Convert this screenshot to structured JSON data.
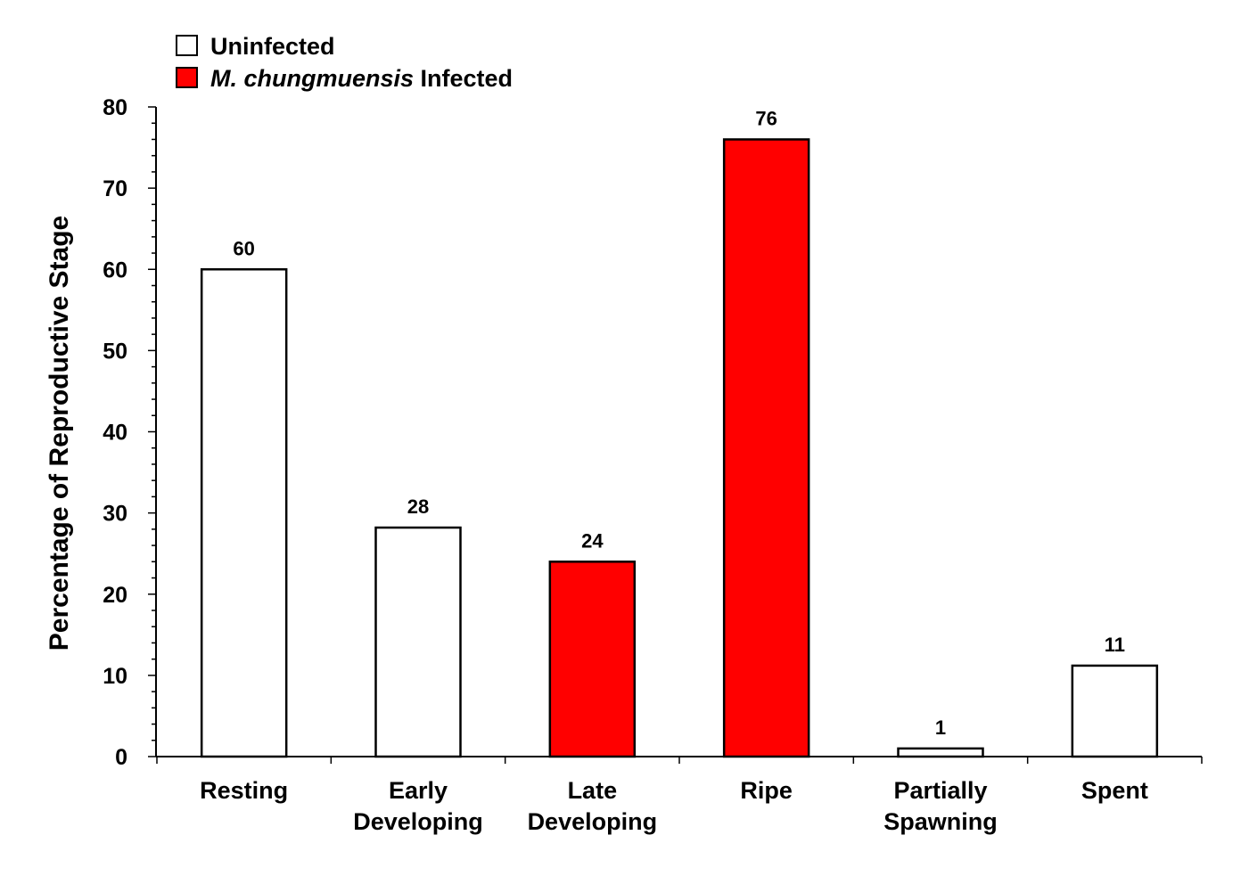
{
  "chart_data": {
    "type": "bar",
    "title": "",
    "xlabel": "",
    "ylabel": "Percentage of Reproductive Stage",
    "ylim": [
      0,
      80
    ],
    "yticks": [
      0,
      10,
      20,
      30,
      40,
      50,
      60,
      70,
      80
    ],
    "grid": false,
    "legend_position": "top-left",
    "categories": [
      {
        "lines": [
          "Resting"
        ]
      },
      {
        "lines": [
          "Early",
          "Developing"
        ]
      },
      {
        "lines": [
          "Late",
          "Developing"
        ]
      },
      {
        "lines": [
          "Ripe"
        ]
      },
      {
        "lines": [
          "Partially",
          "Spawning"
        ]
      },
      {
        "lines": [
          "Spent"
        ]
      }
    ],
    "bars": [
      {
        "value": 60,
        "label": "60",
        "group": "uninfected"
      },
      {
        "value": 28.2,
        "label": "28",
        "group": "uninfected"
      },
      {
        "value": 24,
        "label": "24",
        "group": "infected"
      },
      {
        "value": 76,
        "label": "76",
        "group": "infected"
      },
      {
        "value": 1,
        "label": "1",
        "group": "uninfected"
      },
      {
        "value": 11.2,
        "label": "11",
        "group": "uninfected"
      }
    ],
    "legend": [
      {
        "key": "uninfected",
        "italic_part": "",
        "text": "Uninfected",
        "color": "#ffffff"
      },
      {
        "key": "infected",
        "italic_part": "M. chungmuensis",
        "text": "Infected",
        "color": "#ff0000"
      }
    ]
  }
}
